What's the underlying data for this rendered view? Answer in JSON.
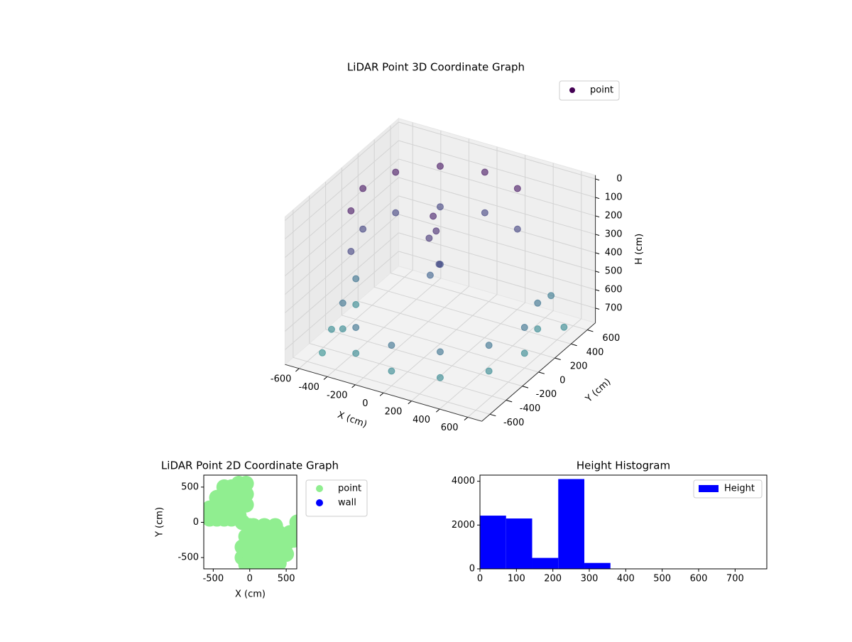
{
  "chart_data": [
    {
      "type": "scatter3d",
      "title": "LiDAR Point 3D Coordinate Graph",
      "xlabel": "X (cm)",
      "ylabel": "Y (cm)",
      "zlabel": "H (cm)",
      "xlim": [
        -700,
        700
      ],
      "ylim": [
        -700,
        700
      ],
      "zlim": [
        -20,
        780
      ],
      "z_inverted": true,
      "xticks": [
        -600,
        -400,
        -200,
        0,
        200,
        400,
        600
      ],
      "yticks": [
        -600,
        -400,
        -200,
        0,
        200,
        400,
        600
      ],
      "zticks": [
        0,
        100,
        200,
        300,
        400,
        500,
        600,
        700
      ],
      "cmap": [
        "#440154",
        "#3b528b",
        "#2a8f8c"
      ],
      "alpha": 0.6,
      "legend": "upper right",
      "series": [
        {
          "name": "point",
          "color": "#440154",
          "x": [
            275,
            0,
            -275,
            -476,
            -550,
            -476,
            275,
            0,
            -275,
            -476,
            -550,
            -476,
            -600,
            -520,
            -300,
            0,
            300,
            520,
            600,
            520,
            -600,
            -520,
            -300,
            0,
            300,
            520,
            600,
            520,
            -50,
            0,
            -100,
            50,
            0,
            -50,
            -600,
            -550,
            500,
            650
          ],
          "y": [
            476,
            550,
            476,
            275,
            0,
            -275,
            476,
            550,
            476,
            275,
            0,
            -275,
            0,
            -300,
            -520,
            -600,
            -520,
            -300,
            0,
            300,
            0,
            -300,
            -520,
            -600,
            -520,
            -300,
            0,
            300,
            -50,
            0,
            50,
            -100,
            -50,
            0,
            -300,
            -500,
            500,
            400
          ],
          "z": [
            60,
            60,
            60,
            60,
            60,
            60,
            280,
            280,
            280,
            280,
            280,
            280,
            560,
            560,
            560,
            560,
            560,
            560,
            560,
            560,
            700,
            700,
            700,
            700,
            700,
            700,
            700,
            700,
            200,
            350,
            450,
            300,
            150,
            100,
            720,
            760,
            600,
            700
          ]
        }
      ]
    },
    {
      "type": "scatter",
      "title": "LiDAR Point 2D Coordinate Graph",
      "xlabel": "X (cm)",
      "ylabel": "Y (cm)",
      "xlim": [
        -630,
        645
      ],
      "ylim": [
        -660,
        670
      ],
      "xticks": [
        -500,
        0,
        500
      ],
      "yticks": [
        -500,
        0,
        500
      ],
      "legend": "outside right",
      "series": [
        {
          "name": "point",
          "color": "#90ee90",
          "x": [
            -550,
            -550,
            -450,
            -450,
            -450,
            -350,
            -350,
            -350,
            -350,
            -250,
            -250,
            -250,
            -250,
            -150,
            -150,
            -150,
            -150,
            -50,
            -50,
            -50,
            -100,
            0,
            50,
            200,
            350,
            -50,
            100,
            250,
            400,
            550,
            -100,
            50,
            200,
            350,
            500,
            600,
            -100,
            50,
            200,
            350,
            500,
            -50,
            100,
            250,
            400,
            650
          ],
          "y": [
            50,
            200,
            50,
            200,
            350,
            50,
            200,
            350,
            500,
            50,
            200,
            350,
            500,
            100,
            250,
            400,
            550,
            250,
            400,
            550,
            0,
            -50,
            -50,
            -50,
            -50,
            -200,
            -200,
            -200,
            -150,
            -150,
            -350,
            -350,
            -350,
            -350,
            -300,
            -250,
            -500,
            -500,
            -500,
            -500,
            -450,
            -600,
            -620,
            -620,
            -580,
            0
          ]
        },
        {
          "name": "wall",
          "color": "#0000ff",
          "x": [],
          "y": []
        }
      ]
    },
    {
      "type": "histogram",
      "title": "Height Histogram",
      "xlim": [
        0,
        787
      ],
      "ylim": [
        0,
        4280
      ],
      "xticks": [
        0,
        100,
        200,
        300,
        400,
        500,
        600,
        700
      ],
      "yticks": [
        0,
        2000,
        4000
      ],
      "bins": [
        0,
        71.6,
        143.2,
        214.8,
        286.4,
        358,
        429.6,
        501.2,
        572.8,
        644.4,
        716
      ],
      "series": [
        {
          "name": "Height",
          "color": "#0000ff",
          "values": [
            2430,
            2300,
            500,
            4100,
            270,
            0,
            0,
            0,
            0,
            0
          ]
        }
      ],
      "legend": "upper right"
    }
  ]
}
